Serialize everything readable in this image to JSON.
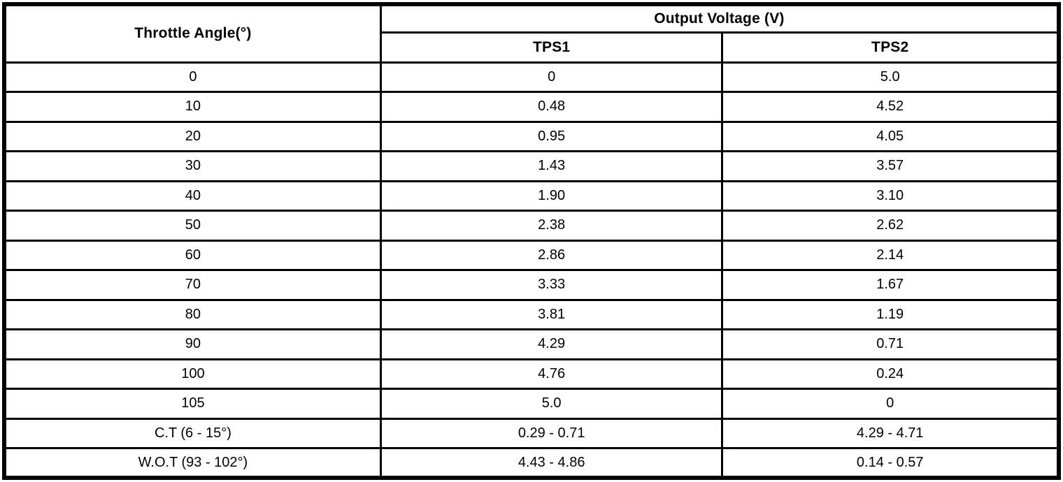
{
  "table": {
    "header": {
      "angle_label": "Throttle Angle(°)",
      "group_label": "Output Voltage (V)",
      "sub1_label": "TPS1",
      "sub2_label": "TPS2"
    },
    "rows": [
      {
        "angle": "0",
        "tps1": "0",
        "tps2": "5.0"
      },
      {
        "angle": "10",
        "tps1": "0.48",
        "tps2": "4.52"
      },
      {
        "angle": "20",
        "tps1": "0.95",
        "tps2": "4.05"
      },
      {
        "angle": "30",
        "tps1": "1.43",
        "tps2": "3.57"
      },
      {
        "angle": "40",
        "tps1": "1.90",
        "tps2": "3.10"
      },
      {
        "angle": "50",
        "tps1": "2.38",
        "tps2": "2.62"
      },
      {
        "angle": "60",
        "tps1": "2.86",
        "tps2": "2.14"
      },
      {
        "angle": "70",
        "tps1": "3.33",
        "tps2": "1.67"
      },
      {
        "angle": "80",
        "tps1": "3.81",
        "tps2": "1.19"
      },
      {
        "angle": "90",
        "tps1": "4.29",
        "tps2": "0.71"
      },
      {
        "angle": "100",
        "tps1": "4.76",
        "tps2": "0.24"
      },
      {
        "angle": "105",
        "tps1": "5.0",
        "tps2": "0"
      },
      {
        "angle": "C.T (6 - 15°)",
        "tps1": "0.29 - 0.71",
        "tps2": "4.29 - 4.71"
      },
      {
        "angle": "W.O.T (93 - 102°)",
        "tps1": "4.43 - 4.86",
        "tps2": "0.14 - 0.57"
      }
    ]
  },
  "colors": {
    "border": "#000000",
    "background": "#ffffff",
    "text": "#000000"
  }
}
